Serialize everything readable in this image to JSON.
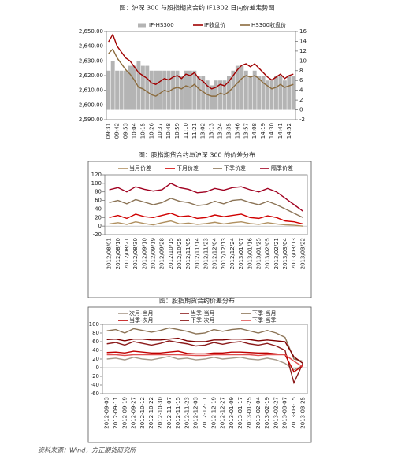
{
  "chart_data": [
    {
      "type": "combo",
      "title": "图：沪深 300 与股指期货合约 IF1302 日内价差走势图",
      "categories": [
        "09:31",
        null,
        "09:42",
        null,
        "09:53",
        null,
        "10:04",
        null,
        "10:15",
        null,
        "10:26",
        null,
        "10:37",
        null,
        "10:48",
        null,
        "10:59",
        null,
        "11:10",
        null,
        "11:21",
        null,
        "13:02",
        null,
        "13:13",
        null,
        "13:24",
        null,
        "13:35",
        null,
        "13:46",
        null,
        "13:57",
        null,
        "14:08",
        null,
        "14:19",
        null,
        "14:30",
        null,
        "14:41",
        null,
        "14:52",
        null
      ],
      "series": [
        {
          "name": "IF-HS300",
          "type": "bar",
          "axis": "y2",
          "color": "#b4b4b4",
          "values": [
            8,
            10,
            8,
            8,
            8,
            9,
            9,
            10,
            9,
            9,
            8,
            8,
            8,
            8,
            8,
            8,
            8,
            7,
            8,
            8,
            8,
            7,
            7,
            6,
            5,
            6,
            6,
            6,
            7,
            8,
            9,
            9,
            8,
            7,
            8,
            7,
            7,
            6,
            6,
            7,
            7,
            6,
            7,
            7
          ]
        },
        {
          "name": "IF收盘价",
          "type": "line",
          "color": "#a00000",
          "values": [
            2643,
            2648,
            2640,
            2636,
            2632,
            2630,
            2626,
            2622,
            2620,
            2618,
            2615,
            2614,
            2616,
            2618,
            2617,
            2619,
            2620,
            2618,
            2621,
            2620,
            2622,
            2618,
            2616,
            2613,
            2611,
            2612,
            2614,
            2613,
            2616,
            2620,
            2624,
            2627,
            2628,
            2626,
            2628,
            2625,
            2622,
            2619,
            2617,
            2619,
            2621,
            2618,
            2620,
            2621
          ]
        },
        {
          "name": "HS300收盘价",
          "type": "line",
          "color": "#8b6b3d",
          "values": [
            2635,
            2638,
            2632,
            2628,
            2624,
            2621,
            2617,
            2612,
            2611,
            2609,
            2607,
            2606,
            2608,
            2610,
            2609,
            2611,
            2612,
            2611,
            2613,
            2612,
            2614,
            2611,
            2609,
            2607,
            2606,
            2606,
            2608,
            2607,
            2609,
            2612,
            2615,
            2618,
            2620,
            2619,
            2620,
            2618,
            2615,
            2613,
            2611,
            2612,
            2614,
            2612,
            2613,
            2614
          ]
        }
      ],
      "ylim": [
        2590,
        2650
      ],
      "yticks": [
        {
          "value": 2590,
          "label": "2,590.00"
        },
        {
          "value": 2600,
          "label": "2,600.00"
        },
        {
          "value": 2610,
          "label": "2,610.00"
        },
        {
          "value": 2620,
          "label": "2,620.00"
        },
        {
          "value": 2630,
          "label": "2,630.00"
        },
        {
          "value": 2640,
          "label": "2,640.00"
        },
        {
          "value": 2650,
          "label": "2,650.00"
        }
      ],
      "y2lim": [
        -2,
        16
      ],
      "y2ticks": [
        -2,
        0,
        2,
        4,
        6,
        8,
        10,
        12,
        14,
        16
      ]
    },
    {
      "type": "line",
      "title": "图：股指期货合约与沪深 300 的价差分布",
      "categories": [
        "2012/08/01",
        "2012/08/10",
        "2012/08/21",
        "2012/08/30",
        "2012/09/10",
        "2012/09/19",
        "2012/09/28",
        "2012/10/15",
        "2012/10/25",
        "2012/11/05",
        "2012/11/14",
        "2012/11/23",
        "2012/12/04",
        "2012/12/13",
        "2012/12/24",
        "2013/01/07",
        "2013/01/16",
        "2013/01/25",
        "2013/02/05",
        "2013/02/21",
        "2013/03/04",
        "2013/03/13",
        "2013/03/22"
      ],
      "series": [
        {
          "name": "当月价差",
          "color": "#b09060",
          "values": [
            5,
            8,
            4,
            10,
            6,
            3,
            8,
            12,
            5,
            7,
            4,
            6,
            9,
            5,
            8,
            10,
            6,
            4,
            8,
            5,
            3,
            2,
            0
          ]
        },
        {
          "name": "下月价差",
          "color": "#d00000",
          "values": [
            20,
            25,
            18,
            28,
            22,
            20,
            25,
            30,
            22,
            24,
            18,
            20,
            26,
            22,
            25,
            28,
            20,
            18,
            24,
            20,
            12,
            10,
            5
          ]
        },
        {
          "name": "下季价差",
          "color": "#8b7355",
          "values": [
            55,
            60,
            52,
            62,
            56,
            50,
            55,
            65,
            58,
            55,
            48,
            50,
            58,
            52,
            60,
            62,
            55,
            50,
            58,
            50,
            40,
            30,
            20
          ]
        },
        {
          "name": "隔季价差",
          "color": "#a00020",
          "values": [
            85,
            90,
            80,
            92,
            86,
            82,
            85,
            100,
            90,
            86,
            78,
            80,
            88,
            84,
            90,
            92,
            85,
            80,
            88,
            80,
            65,
            50,
            35
          ]
        }
      ],
      "ylim": [
        -20,
        120
      ],
      "yticks": [
        -20,
        0,
        20,
        40,
        60,
        80,
        100,
        120
      ]
    },
    {
      "type": "line",
      "title": "图：股指期货合约价差分布",
      "categories": [
        "2012-09-03",
        "2012-09-11",
        "2012-09-19",
        "2012-09-27",
        "2012-10-12",
        "2012-10-22",
        "2012-10-30",
        "2012-11-07",
        "2012-11-15",
        "2012-11-23",
        "2012-12-03",
        "2012-12-11",
        "2012-12-19",
        "2012-12-27",
        "2013-01-09",
        "2013-01-17",
        "2013-01-25",
        "2013-02-04",
        "2013-02-19",
        "2013-02-27",
        "2013-03-07",
        "2013-03-15",
        "2013-03-25"
      ],
      "series": [
        {
          "name": "次月-当月",
          "color": "#a89a8a",
          "values": [
            20,
            22,
            18,
            24,
            20,
            18,
            22,
            26,
            20,
            22,
            18,
            20,
            24,
            20,
            22,
            24,
            20,
            18,
            22,
            18,
            10,
            -5,
            5
          ]
        },
        {
          "name": "当季-当月",
          "color": "#8b1a1a",
          "values": [
            55,
            58,
            52,
            60,
            56,
            52,
            56,
            62,
            58,
            55,
            50,
            52,
            58,
            54,
            58,
            60,
            55,
            52,
            56,
            50,
            40,
            -35,
            10
          ]
        },
        {
          "name": "下季-当月",
          "color": "#8b7355",
          "values": [
            85,
            88,
            80,
            90,
            86,
            82,
            86,
            92,
            88,
            84,
            78,
            80,
            88,
            84,
            88,
            90,
            85,
            80,
            86,
            80,
            70,
            20,
            15
          ]
        },
        {
          "name": "当季-次月",
          "color": "#c00000",
          "values": [
            35,
            36,
            34,
            38,
            36,
            34,
            34,
            36,
            38,
            33,
            32,
            32,
            34,
            34,
            36,
            36,
            35,
            34,
            34,
            32,
            30,
            -10,
            5
          ]
        },
        {
          "name": "下季-次月",
          "color": "#7f0000",
          "values": [
            65,
            66,
            62,
            66,
            66,
            64,
            64,
            66,
            68,
            62,
            60,
            60,
            64,
            64,
            66,
            66,
            65,
            62,
            64,
            62,
            60,
            25,
            10
          ]
        },
        {
          "name": "下季-当季",
          "color": "#e05050",
          "values": [
            30,
            30,
            28,
            30,
            30,
            30,
            30,
            30,
            30,
            29,
            28,
            28,
            30,
            30,
            30,
            30,
            30,
            28,
            30,
            30,
            30,
            15,
            2
          ]
        }
      ],
      "ylim": [
        -60,
        100
      ],
      "yticks": [
        -60,
        -40,
        -20,
        0,
        20,
        40,
        60,
        80,
        100
      ]
    }
  ],
  "source": "资料来源：Wind，方正期货研究所"
}
